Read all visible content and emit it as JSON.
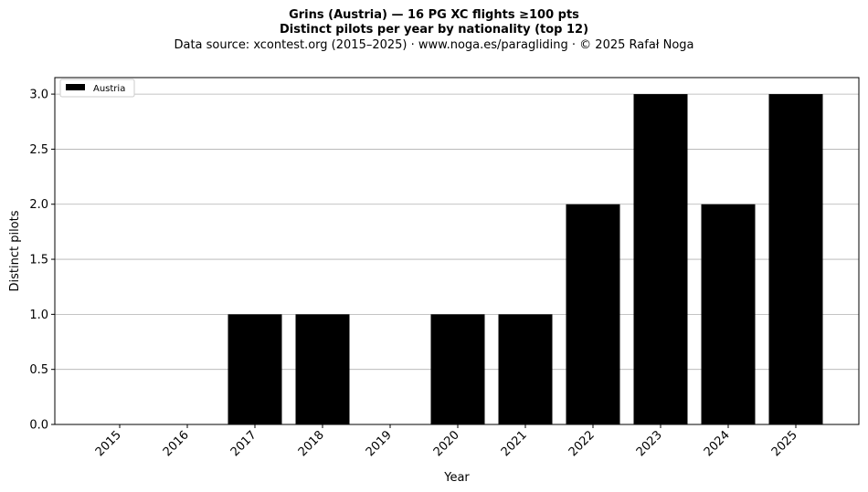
{
  "chart_data": {
    "type": "bar",
    "title": "Grins (Austria)  —  16 PG XC flights ≥100 pts",
    "subtitle": "Distinct pilots per year by nationality (top 12)",
    "source": "Data source: xcontest.org (2015–2025)  ·  www.noga.es/paragliding  ·  © 2025 Rafał Noga",
    "xlabel": "Year",
    "ylabel": "Distinct pilots",
    "categories": [
      "2015",
      "2016",
      "2017",
      "2018",
      "2019",
      "2020",
      "2021",
      "2022",
      "2023",
      "2024",
      "2025"
    ],
    "series": [
      {
        "name": "Austria",
        "color": "#000000",
        "values": [
          0,
          0,
          1,
          1,
          0,
          1,
          1,
          2,
          3,
          2,
          3
        ]
      }
    ],
    "ylim": [
      0,
      3.15
    ],
    "yticks": [
      "0.0",
      "0.5",
      "1.0",
      "1.5",
      "2.0",
      "2.5",
      "3.0"
    ],
    "grid": "y",
    "legend_position": "top-left"
  }
}
